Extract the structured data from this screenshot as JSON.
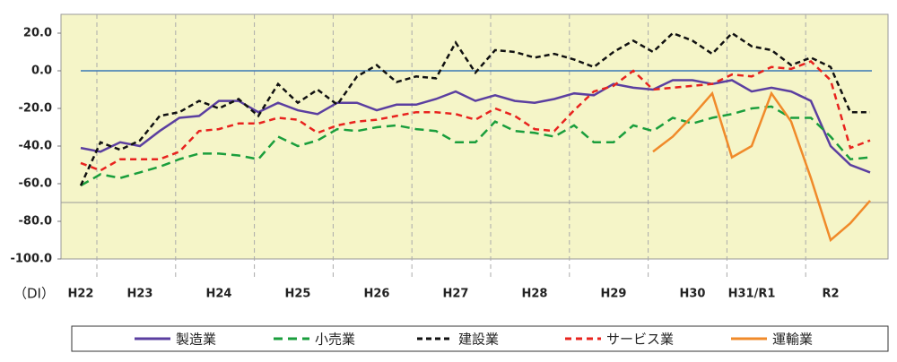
{
  "chart_data": {
    "type": "line",
    "y_unit_label": "（DI）",
    "categories": [
      "H22",
      null,
      null,
      "H23",
      null,
      null,
      null,
      "H24",
      null,
      null,
      null,
      "H25",
      null,
      null,
      null,
      "H26",
      null,
      null,
      null,
      "H27",
      null,
      null,
      null,
      "H28",
      null,
      null,
      null,
      "H29",
      null,
      null,
      null,
      "H30",
      null,
      null,
      "H31/R1",
      null,
      null,
      null,
      "R2",
      null,
      null
    ],
    "ylim": [
      -100,
      30
    ],
    "yticks": [
      {
        "value": -100,
        "label": "-100.0"
      },
      {
        "value": -80,
        "label": "-80.0"
      },
      {
        "value": -60,
        "label": "-60.0"
      },
      {
        "value": -40,
        "label": "-40.0"
      },
      {
        "value": -20,
        "label": "-20.0"
      },
      {
        "value": 0,
        "label": "0.0"
      },
      {
        "value": 20,
        "label": "20.0"
      }
    ],
    "legend": "bottom",
    "series": [
      {
        "name": "製造業",
        "color": "#5b3fa0",
        "dash": "none",
        "values": [
          -41,
          -43,
          -38,
          -40,
          -32,
          -25,
          -24,
          -16,
          -16,
          -22,
          -17,
          -21,
          -23,
          -17,
          -17,
          -21,
          -18,
          -18,
          -15,
          -11,
          -16,
          -13,
          -16,
          -17,
          -15,
          -12,
          -13,
          -7,
          -9,
          -10,
          -5,
          -5,
          -7,
          -5,
          -11,
          -9,
          -11,
          -16,
          -40,
          -50,
          -54
        ]
      },
      {
        "name": "小売業",
        "color": "#1a9e3c",
        "dash": "10 6",
        "values": [
          -61,
          -55,
          -57,
          -54,
          -51,
          -47,
          -44,
          -44,
          -45,
          -47,
          -35,
          -40,
          -37,
          -31,
          -32,
          -30,
          -29,
          -31,
          -32,
          -38,
          -38,
          -27,
          -32,
          -33,
          -35,
          -29,
          -38,
          -38,
          -29,
          -32,
          -25,
          -28,
          -25,
          -23,
          -20,
          -19,
          -25,
          -25,
          -35,
          -47,
          -46
        ]
      },
      {
        "name": "建設業",
        "color": "#111111",
        "dash": "6 4",
        "values": [
          -61,
          -38,
          -42,
          -37,
          -24,
          -22,
          -16,
          -20,
          -15,
          -24,
          -7,
          -17,
          -10,
          -18,
          -3,
          3,
          -6,
          -3,
          -4,
          15,
          -1,
          11,
          10,
          7,
          9,
          6,
          2,
          10,
          16,
          10,
          20,
          16,
          9,
          20,
          13,
          11,
          3,
          7,
          2,
          -22,
          -22
        ]
      },
      {
        "name": "サービス業",
        "color": "#e8231e",
        "dash": "7 5",
        "values": [
          -49,
          -53,
          -47,
          -47,
          -47,
          -43,
          -32,
          -31,
          -28,
          -28,
          -25,
          -26,
          -33,
          -29,
          -27,
          -26,
          -24,
          -22,
          -22,
          -23,
          -26,
          -20,
          -24,
          -31,
          -32,
          -21,
          -11,
          -8,
          0,
          -10,
          -9,
          -8,
          -7,
          -2,
          -3,
          2,
          1,
          5,
          -5,
          -41,
          -37
        ]
      },
      {
        "name": "運輸業",
        "color": "#f08a2a",
        "dash": "none",
        "values": [
          null,
          null,
          null,
          null,
          null,
          null,
          null,
          null,
          null,
          null,
          null,
          null,
          null,
          null,
          null,
          null,
          null,
          null,
          null,
          null,
          null,
          null,
          null,
          null,
          null,
          null,
          null,
          null,
          null,
          -43,
          -35,
          -24,
          -12,
          -46,
          -40,
          -12,
          -27,
          -57,
          -90,
          -81,
          -69
        ]
      }
    ]
  }
}
